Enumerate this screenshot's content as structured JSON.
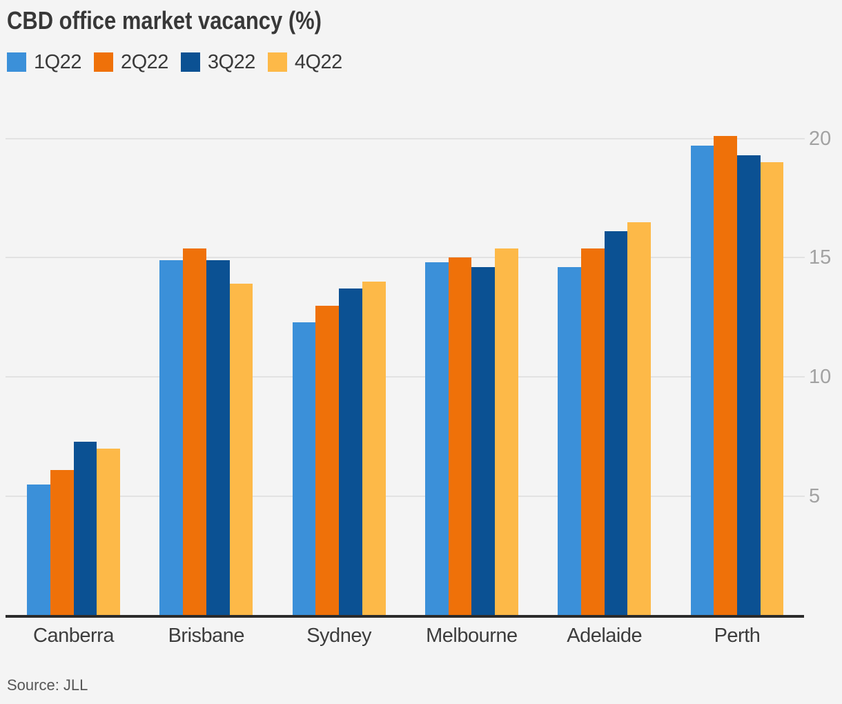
{
  "title": "CBD office market vacancy (%)",
  "source": "Source: JLL",
  "colors": {
    "background": "#f4f4f4",
    "gridline": "#e2e2e2",
    "axis": "#2b2b2b",
    "tick_label": "#a2a2a2",
    "text": "#383838",
    "series_1q22": "#3b90d9",
    "series_2q22": "#ef7109",
    "series_3q22": "#0b5193",
    "series_4q22": "#fdb948"
  },
  "chart_data": {
    "type": "bar",
    "title": "CBD office market vacancy (%)",
    "categories": [
      "Canberra",
      "Brisbane",
      "Sydney",
      "Melbourne",
      "Adelaide",
      "Perth"
    ],
    "series": [
      {
        "name": "1Q22",
        "color": "#3b90d9",
        "values": [
          5.5,
          14.9,
          12.3,
          14.8,
          14.6,
          19.7
        ]
      },
      {
        "name": "2Q22",
        "color": "#ef7109",
        "values": [
          6.1,
          15.4,
          13.0,
          15.0,
          15.4,
          20.1
        ]
      },
      {
        "name": "3Q22",
        "color": "#0b5193",
        "values": [
          7.3,
          14.9,
          13.7,
          14.6,
          16.1,
          19.3
        ]
      },
      {
        "name": "4Q22",
        "color": "#fdb948",
        "values": [
          7.0,
          13.9,
          14.0,
          15.4,
          16.5,
          19.0
        ]
      }
    ],
    "xlabel": "",
    "ylabel": "",
    "ylim": [
      0,
      21
    ],
    "yticks": [
      5,
      10,
      15,
      20
    ],
    "grid": "horizontal",
    "legend_position": "top-left",
    "source": "Source: JLL"
  }
}
